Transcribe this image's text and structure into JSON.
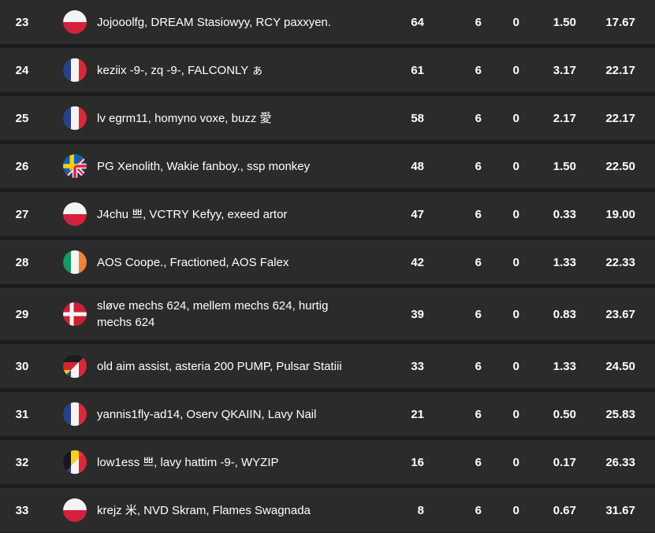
{
  "table": {
    "rows": [
      {
        "rank": "23",
        "flag": "poland",
        "players": "Jojooolfg, DREAM Stasiowyy, RCY paxxyen.",
        "stats": [
          "64",
          "6",
          "0",
          "1.50",
          "17.67"
        ]
      },
      {
        "rank": "24",
        "flag": "france",
        "players": "keziix -9-, zq -9-, FALCONLY ぁ",
        "stats": [
          "61",
          "6",
          "0",
          "3.17",
          "22.17"
        ]
      },
      {
        "rank": "25",
        "flag": "france",
        "players": "lv egrm11, homyno voxe, buzz 愛",
        "stats": [
          "58",
          "6",
          "0",
          "2.17",
          "22.17"
        ]
      },
      {
        "rank": "26",
        "flag": "sweden-uk",
        "players": "PG Xenolith, Wakie fanboy., ssp monkey",
        "stats": [
          "48",
          "6",
          "0",
          "1.50",
          "22.50"
        ]
      },
      {
        "rank": "27",
        "flag": "poland",
        "players": "J4chu 쁘, VCTRY Kefyy, exeed artor",
        "stats": [
          "47",
          "6",
          "0",
          "0.33",
          "19.00"
        ]
      },
      {
        "rank": "28",
        "flag": "ireland",
        "players": "AOS Coope., Fractioned, AOS Falex",
        "stats": [
          "42",
          "6",
          "0",
          "1.33",
          "22.33"
        ]
      },
      {
        "rank": "29",
        "flag": "denmark",
        "players": "sløve mechs 624, mellem mechs 624, hurtig mechs 624",
        "stats": [
          "39",
          "6",
          "0",
          "0.83",
          "23.67"
        ]
      },
      {
        "rank": "30",
        "flag": "germany-france",
        "players": "old aim assist, asteria 200 PUMP, Pulsar Statiii",
        "stats": [
          "33",
          "6",
          "0",
          "1.33",
          "24.50"
        ]
      },
      {
        "rank": "31",
        "flag": "france",
        "players": "yannis1fly-ad14, Oserv QKAIIN, Lavy Nail",
        "stats": [
          "21",
          "6",
          "0",
          "0.50",
          "25.83"
        ]
      },
      {
        "rank": "32",
        "flag": "belgium-france",
        "players": "low1ess 쁘, lavy hattim -9-, WYZIP",
        "stats": [
          "16",
          "6",
          "0",
          "0.17",
          "26.33"
        ]
      },
      {
        "rank": "33",
        "flag": "poland",
        "players": "krejz 米, NVD Skram, Flames Swagnada",
        "stats": [
          "8",
          "6",
          "0",
          "0.67",
          "31.67"
        ]
      }
    ]
  },
  "colors": {
    "page_bg": "#1c1c1c",
    "row_bg": "#2b2b2b",
    "text": "#ffffff"
  }
}
